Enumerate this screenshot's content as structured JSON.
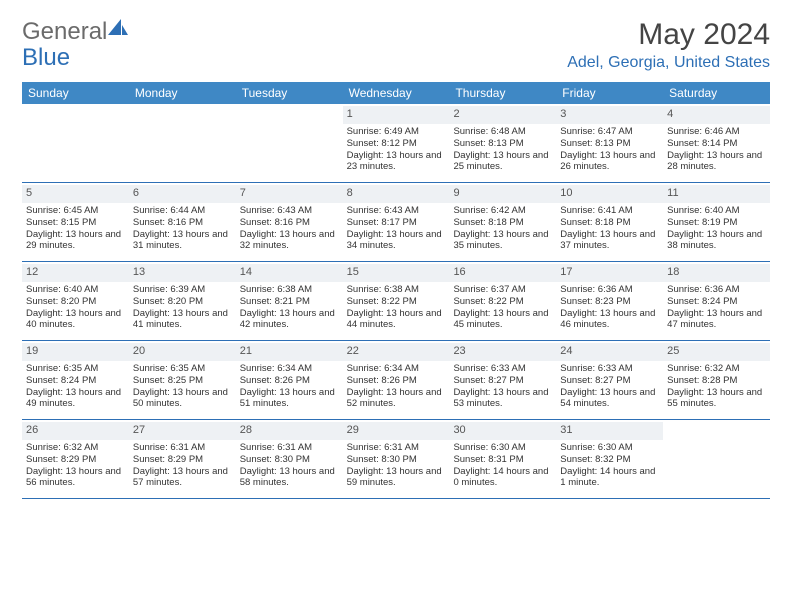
{
  "logo": {
    "text1": "General",
    "text2": "Blue"
  },
  "title": "May 2024",
  "location": "Adel, Georgia, United States",
  "header_bg": "#3f88c5",
  "accent": "#2d6fb5",
  "daynum_bg": "#eef1f4",
  "dow": [
    "Sunday",
    "Monday",
    "Tuesday",
    "Wednesday",
    "Thursday",
    "Friday",
    "Saturday"
  ],
  "weeks": [
    [
      {
        "n": "",
        "sr": "",
        "ss": "",
        "dl": ""
      },
      {
        "n": "",
        "sr": "",
        "ss": "",
        "dl": ""
      },
      {
        "n": "",
        "sr": "",
        "ss": "",
        "dl": ""
      },
      {
        "n": "1",
        "sr": "Sunrise: 6:49 AM",
        "ss": "Sunset: 8:12 PM",
        "dl": "Daylight: 13 hours and 23 minutes."
      },
      {
        "n": "2",
        "sr": "Sunrise: 6:48 AM",
        "ss": "Sunset: 8:13 PM",
        "dl": "Daylight: 13 hours and 25 minutes."
      },
      {
        "n": "3",
        "sr": "Sunrise: 6:47 AM",
        "ss": "Sunset: 8:13 PM",
        "dl": "Daylight: 13 hours and 26 minutes."
      },
      {
        "n": "4",
        "sr": "Sunrise: 6:46 AM",
        "ss": "Sunset: 8:14 PM",
        "dl": "Daylight: 13 hours and 28 minutes."
      }
    ],
    [
      {
        "n": "5",
        "sr": "Sunrise: 6:45 AM",
        "ss": "Sunset: 8:15 PM",
        "dl": "Daylight: 13 hours and 29 minutes."
      },
      {
        "n": "6",
        "sr": "Sunrise: 6:44 AM",
        "ss": "Sunset: 8:16 PM",
        "dl": "Daylight: 13 hours and 31 minutes."
      },
      {
        "n": "7",
        "sr": "Sunrise: 6:43 AM",
        "ss": "Sunset: 8:16 PM",
        "dl": "Daylight: 13 hours and 32 minutes."
      },
      {
        "n": "8",
        "sr": "Sunrise: 6:43 AM",
        "ss": "Sunset: 8:17 PM",
        "dl": "Daylight: 13 hours and 34 minutes."
      },
      {
        "n": "9",
        "sr": "Sunrise: 6:42 AM",
        "ss": "Sunset: 8:18 PM",
        "dl": "Daylight: 13 hours and 35 minutes."
      },
      {
        "n": "10",
        "sr": "Sunrise: 6:41 AM",
        "ss": "Sunset: 8:18 PM",
        "dl": "Daylight: 13 hours and 37 minutes."
      },
      {
        "n": "11",
        "sr": "Sunrise: 6:40 AM",
        "ss": "Sunset: 8:19 PM",
        "dl": "Daylight: 13 hours and 38 minutes."
      }
    ],
    [
      {
        "n": "12",
        "sr": "Sunrise: 6:40 AM",
        "ss": "Sunset: 8:20 PM",
        "dl": "Daylight: 13 hours and 40 minutes."
      },
      {
        "n": "13",
        "sr": "Sunrise: 6:39 AM",
        "ss": "Sunset: 8:20 PM",
        "dl": "Daylight: 13 hours and 41 minutes."
      },
      {
        "n": "14",
        "sr": "Sunrise: 6:38 AM",
        "ss": "Sunset: 8:21 PM",
        "dl": "Daylight: 13 hours and 42 minutes."
      },
      {
        "n": "15",
        "sr": "Sunrise: 6:38 AM",
        "ss": "Sunset: 8:22 PM",
        "dl": "Daylight: 13 hours and 44 minutes."
      },
      {
        "n": "16",
        "sr": "Sunrise: 6:37 AM",
        "ss": "Sunset: 8:22 PM",
        "dl": "Daylight: 13 hours and 45 minutes."
      },
      {
        "n": "17",
        "sr": "Sunrise: 6:36 AM",
        "ss": "Sunset: 8:23 PM",
        "dl": "Daylight: 13 hours and 46 minutes."
      },
      {
        "n": "18",
        "sr": "Sunrise: 6:36 AM",
        "ss": "Sunset: 8:24 PM",
        "dl": "Daylight: 13 hours and 47 minutes."
      }
    ],
    [
      {
        "n": "19",
        "sr": "Sunrise: 6:35 AM",
        "ss": "Sunset: 8:24 PM",
        "dl": "Daylight: 13 hours and 49 minutes."
      },
      {
        "n": "20",
        "sr": "Sunrise: 6:35 AM",
        "ss": "Sunset: 8:25 PM",
        "dl": "Daylight: 13 hours and 50 minutes."
      },
      {
        "n": "21",
        "sr": "Sunrise: 6:34 AM",
        "ss": "Sunset: 8:26 PM",
        "dl": "Daylight: 13 hours and 51 minutes."
      },
      {
        "n": "22",
        "sr": "Sunrise: 6:34 AM",
        "ss": "Sunset: 8:26 PM",
        "dl": "Daylight: 13 hours and 52 minutes."
      },
      {
        "n": "23",
        "sr": "Sunrise: 6:33 AM",
        "ss": "Sunset: 8:27 PM",
        "dl": "Daylight: 13 hours and 53 minutes."
      },
      {
        "n": "24",
        "sr": "Sunrise: 6:33 AM",
        "ss": "Sunset: 8:27 PM",
        "dl": "Daylight: 13 hours and 54 minutes."
      },
      {
        "n": "25",
        "sr": "Sunrise: 6:32 AM",
        "ss": "Sunset: 8:28 PM",
        "dl": "Daylight: 13 hours and 55 minutes."
      }
    ],
    [
      {
        "n": "26",
        "sr": "Sunrise: 6:32 AM",
        "ss": "Sunset: 8:29 PM",
        "dl": "Daylight: 13 hours and 56 minutes."
      },
      {
        "n": "27",
        "sr": "Sunrise: 6:31 AM",
        "ss": "Sunset: 8:29 PM",
        "dl": "Daylight: 13 hours and 57 minutes."
      },
      {
        "n": "28",
        "sr": "Sunrise: 6:31 AM",
        "ss": "Sunset: 8:30 PM",
        "dl": "Daylight: 13 hours and 58 minutes."
      },
      {
        "n": "29",
        "sr": "Sunrise: 6:31 AM",
        "ss": "Sunset: 8:30 PM",
        "dl": "Daylight: 13 hours and 59 minutes."
      },
      {
        "n": "30",
        "sr": "Sunrise: 6:30 AM",
        "ss": "Sunset: 8:31 PM",
        "dl": "Daylight: 14 hours and 0 minutes."
      },
      {
        "n": "31",
        "sr": "Sunrise: 6:30 AM",
        "ss": "Sunset: 8:32 PM",
        "dl": "Daylight: 14 hours and 1 minute."
      },
      {
        "n": "",
        "sr": "",
        "ss": "",
        "dl": ""
      }
    ]
  ]
}
